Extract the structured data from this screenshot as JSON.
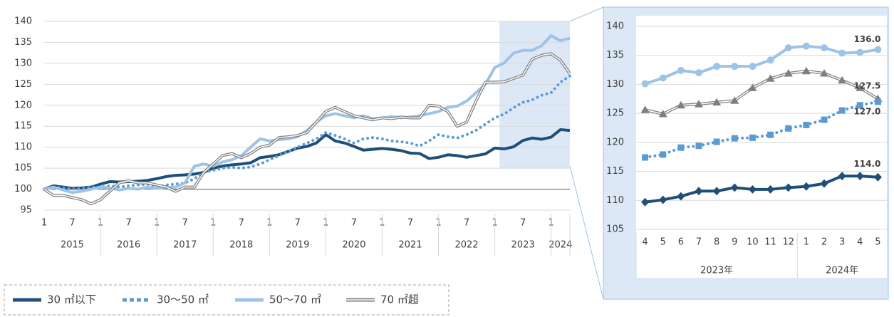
{
  "chart_data": [
    {
      "type": "line",
      "categories": [
        1,
        null,
        null,
        7,
        null,
        null,
        1,
        null,
        null,
        7,
        null,
        null,
        1,
        null,
        null,
        7,
        null,
        null,
        1,
        null,
        null,
        7,
        null,
        null,
        1,
        null,
        null,
        7,
        null,
        null,
        1,
        null,
        null,
        7,
        null,
        null,
        1,
        null,
        null,
        7,
        null,
        null,
        1,
        null,
        null,
        7,
        null,
        null,
        1,
        null,
        null,
        7,
        null,
        null,
        1,
        null,
        null
      ],
      "year_labels": [
        "2015",
        "2016",
        "2017",
        "2018",
        "2019",
        "2020",
        "2021",
        "2022",
        "2023",
        "2024"
      ],
      "ylim": [
        95,
        140
      ],
      "yticks": [
        95,
        100,
        105,
        110,
        115,
        120,
        125,
        130,
        135,
        140
      ],
      "grid": true,
      "baseline": 100,
      "series": [
        {
          "name": "30 ㎡以下",
          "color": "#1f4e79",
          "style": "solid",
          "values": [
            100,
            100.8,
            100.5,
            100.2,
            100.3,
            100.5,
            101.2,
            101.8,
            101.7,
            101.8,
            101.9,
            102.1,
            102.5,
            103,
            103.3,
            103.4,
            103.6,
            104,
            105,
            105.5,
            105.8,
            106,
            106.3,
            107.5,
            107.8,
            108.2,
            109,
            109.8,
            110.2,
            111,
            113,
            111.5,
            111,
            110.2,
            109.3,
            109.5,
            109.7,
            109.5,
            109.2,
            108.6,
            108.5,
            107.3,
            107.6,
            108.2,
            108,
            107.6,
            108,
            108.4,
            109.8,
            109.6,
            110.1,
            111.6,
            112.2,
            111.9,
            112.4,
            114.2,
            114
          ]
        },
        {
          "name": "30～50 ㎡",
          "color": "#5b9bd5",
          "style": "dotted",
          "values": [
            100,
            100.5,
            100.3,
            100,
            100.2,
            100.5,
            100.5,
            100.8,
            100.5,
            100.8,
            101,
            101.2,
            100.5,
            101,
            101.2,
            101.5,
            102.5,
            104,
            104.5,
            105,
            105.2,
            105,
            105.3,
            106,
            107,
            108,
            109,
            110,
            111,
            112,
            113.5,
            112.8,
            112,
            111,
            112,
            112.3,
            112,
            111.5,
            111.3,
            111,
            110.3,
            111.5,
            113,
            112.5,
            112.2,
            113,
            114,
            115.5,
            117,
            117.9,
            119.4,
            120.7,
            121.3,
            122.4,
            123,
            125.5,
            127
          ]
        },
        {
          "name": "50～70 ㎡",
          "color": "#9dc3e6",
          "style": "solid",
          "values": [
            100,
            100.5,
            99.8,
            99.2,
            99.5,
            100,
            100.5,
            100.3,
            99.8,
            100.2,
            100,
            100.5,
            100.2,
            100.4,
            100.5,
            101.5,
            105.5,
            106,
            105.5,
            106.5,
            107,
            108,
            110,
            112,
            111.5,
            111.8,
            112,
            112.5,
            114,
            116,
            117.5,
            118,
            117.5,
            117,
            117.5,
            116.8,
            117,
            117.3,
            117,
            117.2,
            117.5,
            118,
            118.5,
            119.5,
            119.8,
            121,
            123,
            125,
            129,
            130.1,
            132.4,
            133.1,
            133.1,
            134.2,
            136.6,
            135.4,
            136
          ]
        },
        {
          "name": "70 ㎡超",
          "color": "#7f7f7f",
          "style": "double",
          "values": [
            100,
            98.5,
            98.5,
            98,
            97.5,
            96.5,
            97.5,
            99.5,
            101.5,
            102,
            101.5,
            101.5,
            101,
            100.5,
            99.5,
            100.5,
            100.5,
            104,
            106,
            108,
            108.5,
            107.5,
            108.5,
            110,
            110.5,
            112.3,
            112.5,
            112.8,
            113.5,
            116,
            118.5,
            119.5,
            118.5,
            117.5,
            117,
            116.5,
            117,
            116.8,
            117.2,
            117,
            117,
            120,
            119.8,
            118.5,
            115,
            116,
            121,
            125.5,
            125.5,
            125.6,
            126.4,
            127.2,
            131,
            131.9,
            132.3,
            130.7,
            127.5
          ]
        }
      ]
    },
    {
      "type": "line",
      "categories": [
        4,
        5,
        6,
        7,
        8,
        9,
        10,
        11,
        12,
        1,
        2,
        3,
        4,
        5
      ],
      "year_labels": [
        "2023年",
        "2024年"
      ],
      "ylim": [
        105,
        140
      ],
      "yticks": [
        105,
        110,
        115,
        120,
        125,
        130,
        135,
        140
      ],
      "grid": true,
      "series": [
        {
          "color": "#9dc3e6",
          "style": "solid",
          "marker": "circle",
          "values": [
            130.1,
            131.1,
            132.4,
            132.0,
            133.1,
            133.1,
            133.1,
            134.2,
            136.3,
            136.6,
            136.3,
            135.4,
            135.5,
            136.0
          ],
          "value_labels": [
            null,
            null,
            null,
            null,
            null,
            null,
            null,
            null,
            null,
            null,
            null,
            null,
            null,
            "136.0"
          ]
        },
        {
          "color": "#7f7f7f",
          "style": "double",
          "marker": "triangle",
          "values": [
            125.6,
            124.9,
            126.4,
            126.6,
            126.9,
            127.2,
            129.4,
            131.0,
            131.9,
            132.3,
            131.9,
            130.7,
            129.4,
            127.5
          ],
          "value_labels": [
            null,
            null,
            null,
            null,
            null,
            null,
            null,
            null,
            null,
            null,
            null,
            null,
            null,
            "127.5"
          ]
        },
        {
          "color": "#5b9bd5",
          "style": "dotted",
          "marker": "square",
          "values": [
            117.4,
            117.9,
            119.1,
            119.4,
            120.1,
            120.7,
            120.8,
            121.3,
            122.4,
            123.0,
            123.9,
            125.5,
            126.4,
            127.0
          ],
          "value_labels": [
            null,
            null,
            null,
            null,
            null,
            null,
            null,
            null,
            null,
            null,
            null,
            null,
            null,
            "127.0"
          ]
        },
        {
          "color": "#1f4e79",
          "style": "solid",
          "marker": "diamond",
          "values": [
            109.7,
            110.1,
            110.7,
            111.6,
            111.6,
            112.2,
            111.9,
            111.9,
            112.2,
            112.4,
            112.9,
            114.2,
            114.2,
            114.0
          ],
          "value_labels": [
            null,
            null,
            null,
            null,
            null,
            null,
            null,
            null,
            null,
            null,
            null,
            null,
            null,
            "114.0"
          ]
        }
      ]
    }
  ]
}
